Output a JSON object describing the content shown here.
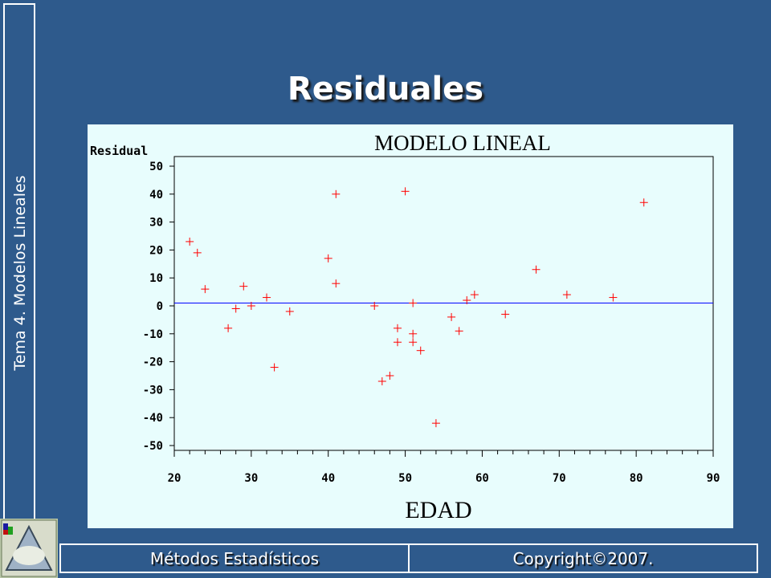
{
  "side_title": "Tema 4. Modelos Lineales",
  "slide_title": "Residuales",
  "footer": {
    "left": "Métodos Estadísticos",
    "right": "Copyright©2007."
  },
  "colors": {
    "background": "#2e5a8c",
    "plot_bg": "#e8fdfd",
    "points": "#ff0000",
    "zero_line": "#0000ff"
  },
  "chart_data": {
    "type": "scatter",
    "title": "MODELO LINEAL",
    "xlabel": "EDAD",
    "ylabel": "Residual",
    "xlim": [
      20,
      90
    ],
    "ylim": [
      -50,
      50
    ],
    "xticks": [
      20,
      30,
      40,
      50,
      60,
      70,
      80,
      90
    ],
    "yticks": [
      50,
      40,
      30,
      20,
      10,
      0,
      -10,
      -20,
      -30,
      -40,
      -50
    ],
    "reference_line_y": 1,
    "grid": false,
    "points": [
      {
        "x": 22,
        "y": 23
      },
      {
        "x": 23,
        "y": 19
      },
      {
        "x": 24,
        "y": 6
      },
      {
        "x": 27,
        "y": -8
      },
      {
        "x": 28,
        "y": -1
      },
      {
        "x": 29,
        "y": 7
      },
      {
        "x": 30,
        "y": 0
      },
      {
        "x": 32,
        "y": 3
      },
      {
        "x": 33,
        "y": -22
      },
      {
        "x": 35,
        "y": -2
      },
      {
        "x": 40,
        "y": 17
      },
      {
        "x": 41,
        "y": 40
      },
      {
        "x": 41,
        "y": 8
      },
      {
        "x": 46,
        "y": 0
      },
      {
        "x": 47,
        "y": -27
      },
      {
        "x": 48,
        "y": -25
      },
      {
        "x": 49,
        "y": -8
      },
      {
        "x": 49,
        "y": -13
      },
      {
        "x": 50,
        "y": 41
      },
      {
        "x": 51,
        "y": 1
      },
      {
        "x": 51,
        "y": -10
      },
      {
        "x": 51,
        "y": -13
      },
      {
        "x": 52,
        "y": -16
      },
      {
        "x": 54,
        "y": -42
      },
      {
        "x": 56,
        "y": -4
      },
      {
        "x": 57,
        "y": -9
      },
      {
        "x": 58,
        "y": 2
      },
      {
        "x": 59,
        "y": 4
      },
      {
        "x": 63,
        "y": -3
      },
      {
        "x": 67,
        "y": 13
      },
      {
        "x": 71,
        "y": 4
      },
      {
        "x": 77,
        "y": 3
      },
      {
        "x": 81,
        "y": 37
      }
    ]
  }
}
